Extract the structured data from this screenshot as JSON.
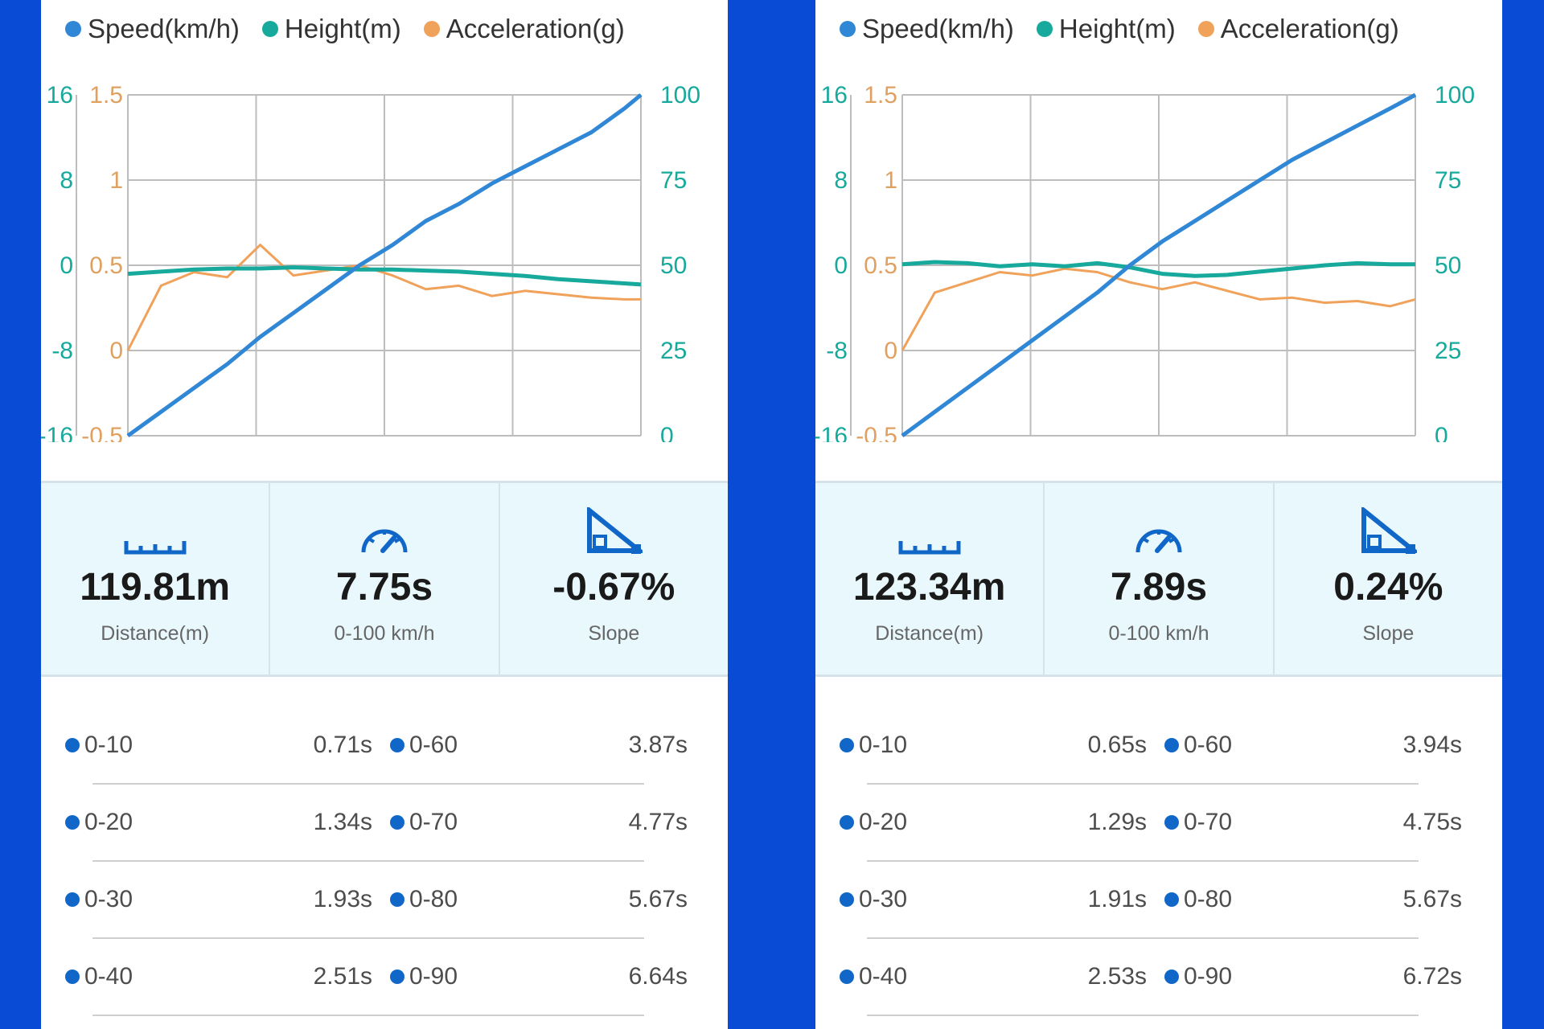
{
  "colors": {
    "background": "#0a4bd6",
    "speed": "#2f87d6",
    "height": "#16a99c",
    "acceleration": "#f0a15a",
    "axis_left_height": "#16a99c",
    "axis_left_accel": "#e0a060",
    "axis_right_speed": "#16a99c",
    "grid": "#bdbdbd",
    "stat_bg": "#e9f8fd",
    "icon": "#1167c8"
  },
  "panels": [
    {
      "legend": [
        {
          "label": "Speed(km/h)",
          "color": "#2f87d6"
        },
        {
          "label": "Height(m)",
          "color": "#16a99c"
        },
        {
          "label": "Acceleration(g)",
          "color": "#f0a15a"
        }
      ],
      "axes": {
        "height_ticks": [
          "16",
          "8",
          "0",
          "-8",
          "-16"
        ],
        "accel_ticks": [
          "1.5",
          "1",
          "0.5",
          "0",
          "-0.5"
        ],
        "speed_ticks": [
          "100",
          "75",
          "50",
          "25",
          "0"
        ]
      },
      "stats": [
        {
          "icon": "ruler-icon",
          "value": "119.81m",
          "label": "Distance(m)"
        },
        {
          "icon": "speedometer-icon",
          "value": "7.75s",
          "label": "0-100 km/h"
        },
        {
          "icon": "slope-icon",
          "value": "-0.67%",
          "label": "Slope"
        }
      ],
      "splits": [
        {
          "a_label": "0-10",
          "a_time": "0.71s",
          "b_label": "0-60",
          "b_time": "3.87s"
        },
        {
          "a_label": "0-20",
          "a_time": "1.34s",
          "b_label": "0-70",
          "b_time": "4.77s"
        },
        {
          "a_label": "0-30",
          "a_time": "1.93s",
          "b_label": "0-80",
          "b_time": "5.67s"
        },
        {
          "a_label": "0-40",
          "a_time": "2.51s",
          "b_label": "0-90",
          "b_time": "6.64s"
        }
      ]
    },
    {
      "legend": [
        {
          "label": "Speed(km/h)",
          "color": "#2f87d6"
        },
        {
          "label": "Height(m)",
          "color": "#16a99c"
        },
        {
          "label": "Acceleration(g)",
          "color": "#f0a15a"
        }
      ],
      "axes": {
        "height_ticks": [
          "16",
          "8",
          "0",
          "-8",
          "-16"
        ],
        "accel_ticks": [
          "1.5",
          "1",
          "0.5",
          "0",
          "-0.5"
        ],
        "speed_ticks": [
          "100",
          "75",
          "50",
          "25",
          "0"
        ]
      },
      "stats": [
        {
          "icon": "ruler-icon",
          "value": "123.34m",
          "label": "Distance(m)"
        },
        {
          "icon": "speedometer-icon",
          "value": "7.89s",
          "label": "0-100 km/h"
        },
        {
          "icon": "slope-icon",
          "value": "0.24%",
          "label": "Slope"
        }
      ],
      "splits": [
        {
          "a_label": "0-10",
          "a_time": "0.65s",
          "b_label": "0-60",
          "b_time": "3.94s"
        },
        {
          "a_label": "0-20",
          "a_time": "1.29s",
          "b_label": "0-70",
          "b_time": "4.75s"
        },
        {
          "a_label": "0-30",
          "a_time": "1.91s",
          "b_label": "0-80",
          "b_time": "5.67s"
        },
        {
          "a_label": "0-40",
          "a_time": "2.53s",
          "b_label": "0-90",
          "b_time": "6.72s"
        }
      ]
    }
  ],
  "chart_data": [
    {
      "type": "line",
      "x": [
        0,
        0.5,
        1,
        1.5,
        2,
        2.5,
        3,
        3.5,
        4,
        4.5,
        5,
        5.5,
        6,
        6.5,
        7,
        7.5,
        7.75
      ],
      "series": [
        {
          "name": "Speed(km/h)",
          "axis": "speed",
          "ylim": [
            0,
            100
          ],
          "values": [
            0,
            7,
            14,
            21,
            29,
            36,
            43,
            50,
            56,
            63,
            68,
            74,
            79,
            84,
            89,
            96,
            100
          ]
        },
        {
          "name": "Height(m)",
          "axis": "height",
          "ylim": [
            -16,
            16
          ],
          "values": [
            -0.8,
            -0.6,
            -0.4,
            -0.3,
            -0.3,
            -0.2,
            -0.3,
            -0.4,
            -0.4,
            -0.5,
            -0.6,
            -0.8,
            -1.0,
            -1.3,
            -1.5,
            -1.7,
            -1.8
          ]
        },
        {
          "name": "Acceleration(g)",
          "axis": "accel",
          "ylim": [
            -0.5,
            1.5
          ],
          "values": [
            0.0,
            0.38,
            0.46,
            0.43,
            0.62,
            0.44,
            0.47,
            0.5,
            0.44,
            0.36,
            0.38,
            0.32,
            0.35,
            0.33,
            0.31,
            0.3,
            0.3
          ]
        }
      ]
    },
    {
      "type": "line",
      "x": [
        0,
        0.5,
        1,
        1.5,
        2,
        2.5,
        3,
        3.5,
        4,
        4.5,
        5,
        5.5,
        6,
        6.5,
        7,
        7.5,
        7.89
      ],
      "series": [
        {
          "name": "Speed(km/h)",
          "axis": "speed",
          "ylim": [
            0,
            100
          ],
          "values": [
            0,
            7,
            14,
            21,
            28,
            35,
            42,
            50,
            57,
            63,
            69,
            75,
            81,
            86,
            91,
            96,
            100
          ]
        },
        {
          "name": "Height(m)",
          "axis": "height",
          "ylim": [
            -16,
            16
          ],
          "values": [
            0.1,
            0.3,
            0.2,
            -0.1,
            0.1,
            -0.1,
            0.2,
            -0.2,
            -0.8,
            -1.0,
            -0.9,
            -0.6,
            -0.3,
            0.0,
            0.2,
            0.1,
            0.1
          ]
        },
        {
          "name": "Acceleration(g)",
          "axis": "accel",
          "ylim": [
            -0.5,
            1.5
          ],
          "values": [
            0.0,
            0.34,
            0.4,
            0.46,
            0.44,
            0.48,
            0.46,
            0.4,
            0.36,
            0.4,
            0.35,
            0.3,
            0.31,
            0.28,
            0.29,
            0.26,
            0.3
          ]
        }
      ]
    }
  ]
}
